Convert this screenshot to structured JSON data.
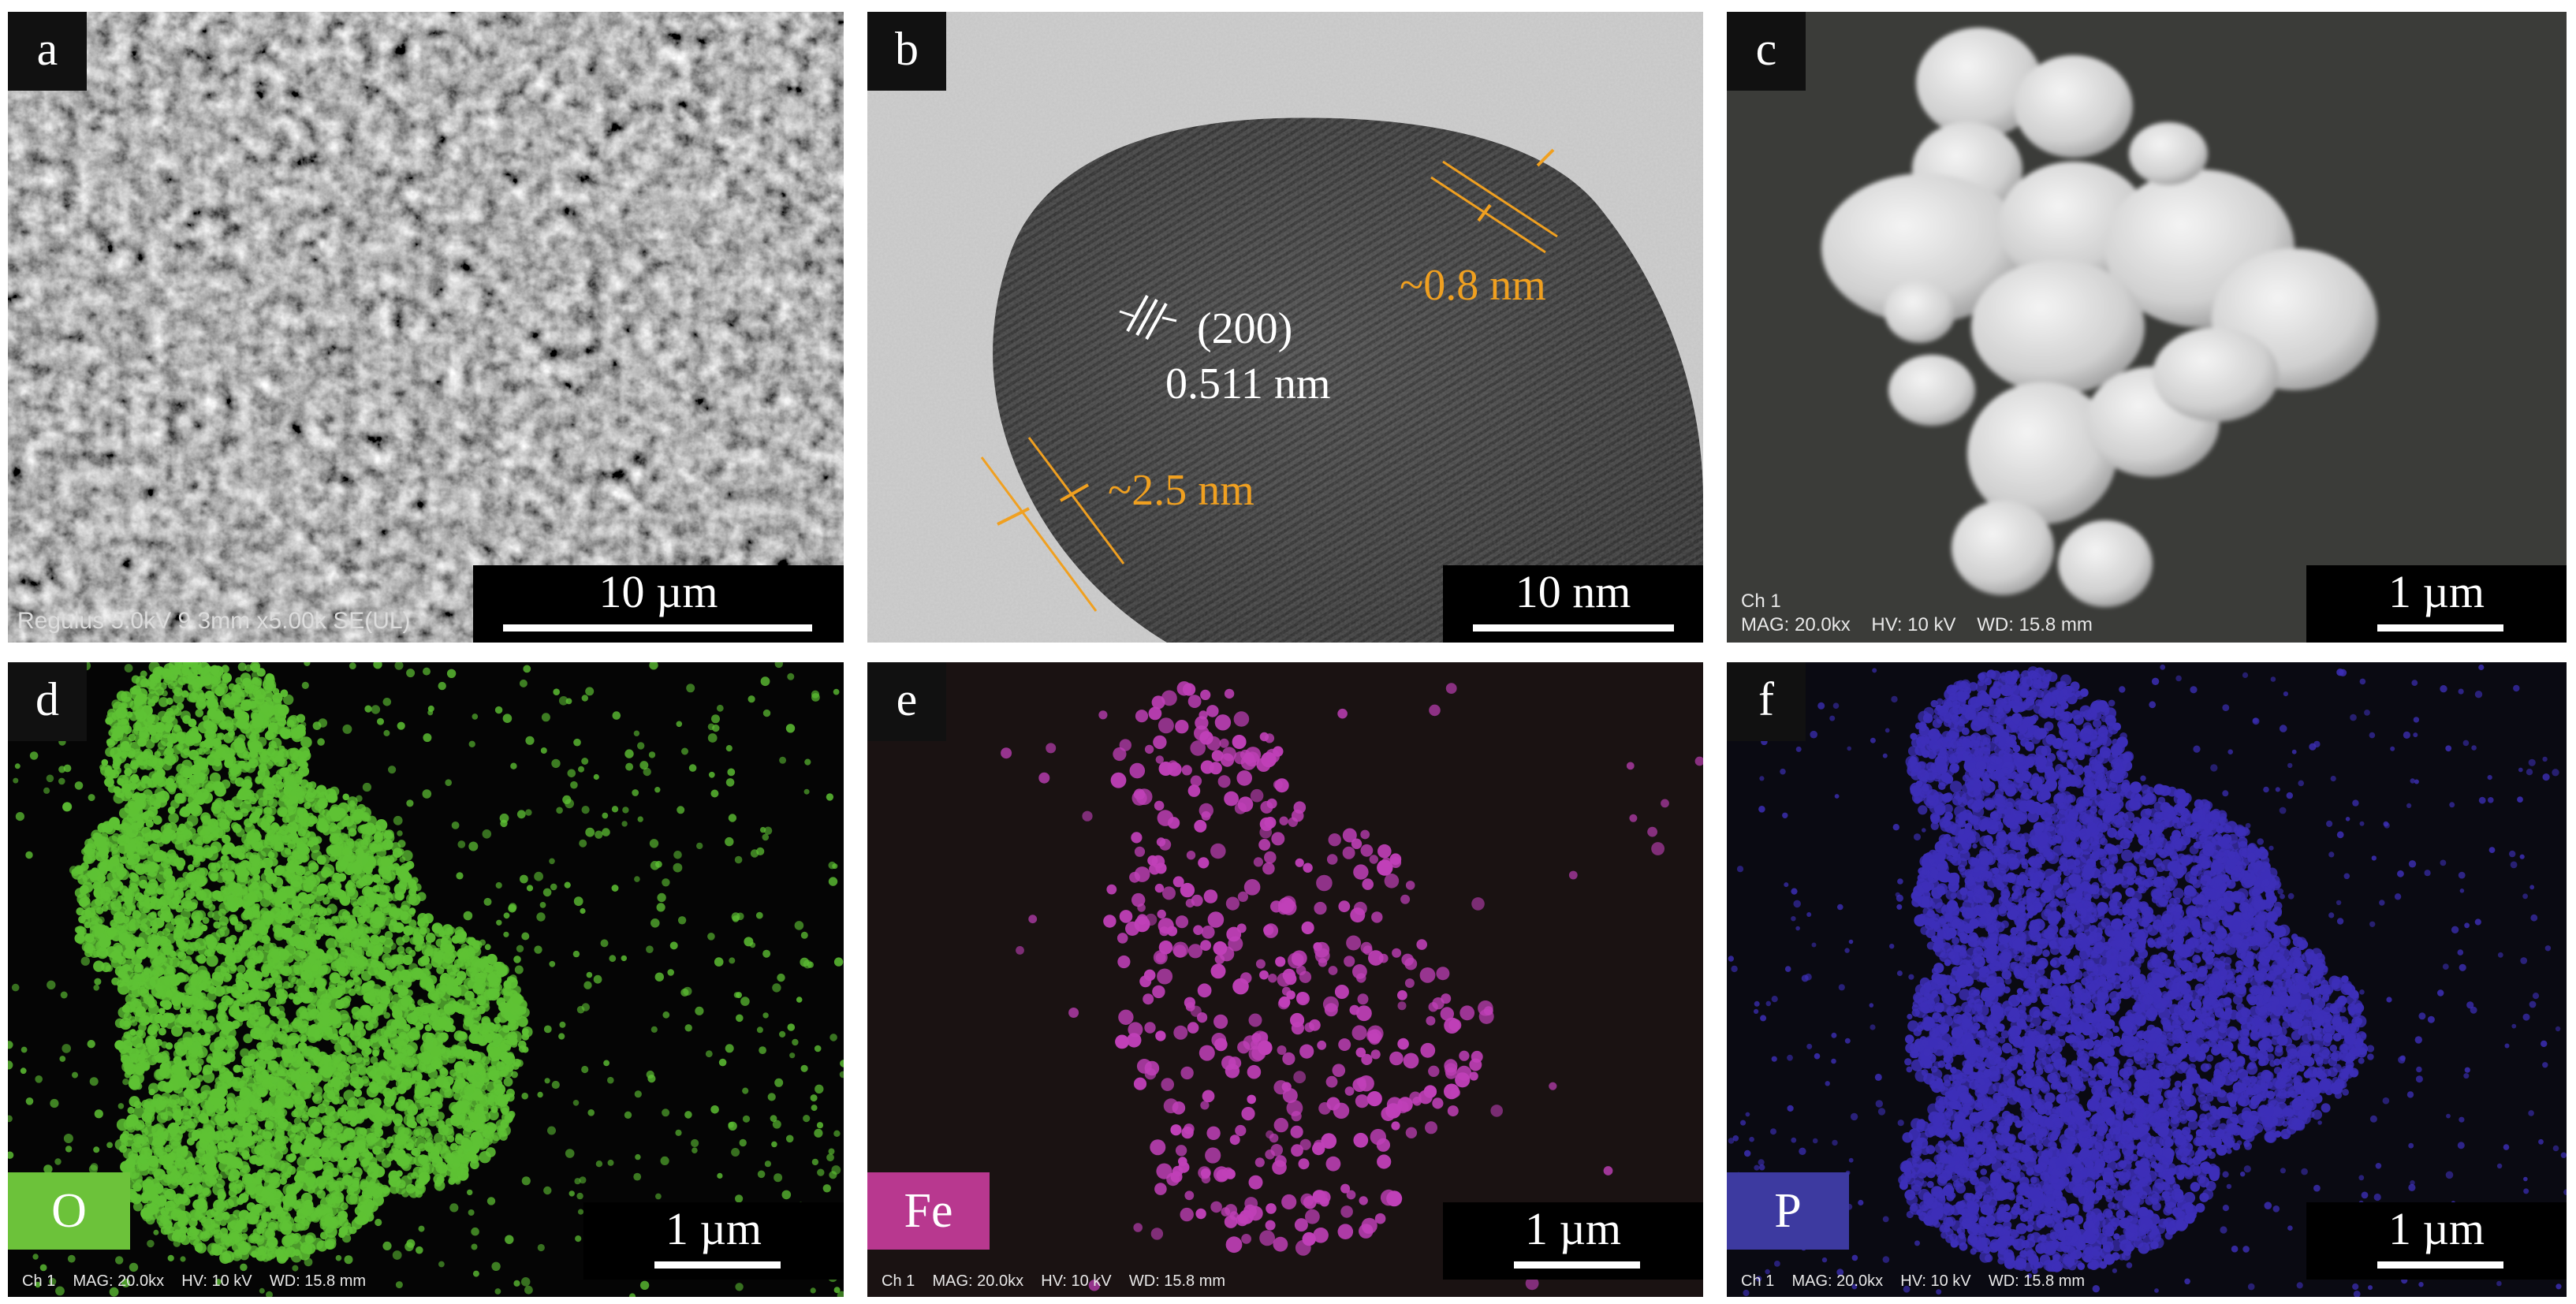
{
  "panels": {
    "a": {
      "label": "a",
      "scale": "10 µm",
      "meta": "Regulus 5.0kV 9.3mm x5.00k SE(UL)"
    },
    "b": {
      "label": "b",
      "scale": "10 nm",
      "plane": "(200)",
      "spacing": "0.511 nm",
      "shell_thick": "~2.5 nm",
      "shell_thin": "~0.8 nm"
    },
    "c": {
      "label": "c",
      "scale": "1 µm",
      "meta1": "Ch 1",
      "meta2": "MAG: 20.0kx    HV: 10 kV    WD: 15.8 mm"
    },
    "d": {
      "label": "d",
      "scale": "1 µm",
      "element": "O",
      "meta": "Ch 1    MAG: 20.0kx    HV: 10 kV    WD: 15.8 mm"
    },
    "e": {
      "label": "e",
      "scale": "1 µm",
      "element": "Fe",
      "meta": "Ch 1    MAG: 20.0kx    HV: 10 kV    WD: 15.8 mm"
    },
    "f": {
      "label": "f",
      "scale": "1 µm",
      "element": "P",
      "meta": "Ch 1    MAG: 20.0kx    HV: 10 kV    WD: 15.8 mm"
    }
  },
  "colors": {
    "oxygen": "#5ec234",
    "iron": "#c040b8",
    "phosphorus": "#3d2fb8",
    "annotation": "#f0a020",
    "badge_o": "#6cc23a",
    "badge_fe": "#b8388f",
    "badge_p": "#3d3aa0"
  }
}
